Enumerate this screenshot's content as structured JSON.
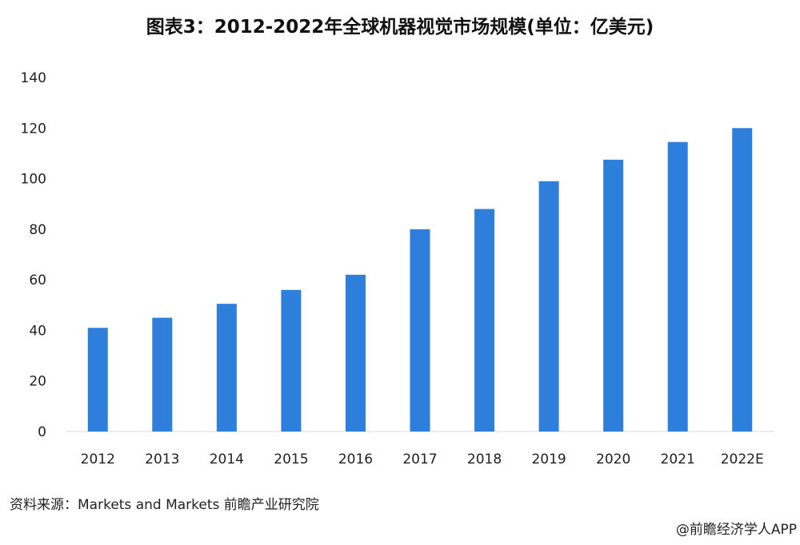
{
  "chart_data": {
    "type": "bar",
    "title": "图表3：2012-2022年全球机器视觉市场规模(单位：亿美元)",
    "categories": [
      "2012",
      "2013",
      "2014",
      "2015",
      "2016",
      "2017",
      "2018",
      "2019",
      "2020",
      "2021",
      "2022E"
    ],
    "series": [
      {
        "values": [
          41,
          45,
          50.5,
          56,
          62,
          80,
          88,
          99,
          107.5,
          114.5,
          120
        ]
      }
    ],
    "xlabel": "",
    "ylabel": "",
    "ylim": [
      0,
      140
    ],
    "yticks": [
      "0",
      "20",
      "40",
      "60",
      "80",
      "100",
      "120",
      "140"
    ],
    "grid": false,
    "legend": "none",
    "bar_color": "#2e7fdc"
  },
  "source_text": "资料来源：Markets and Markets 前瞻产业研究院",
  "footer_text": "@前瞻经济学人APP"
}
